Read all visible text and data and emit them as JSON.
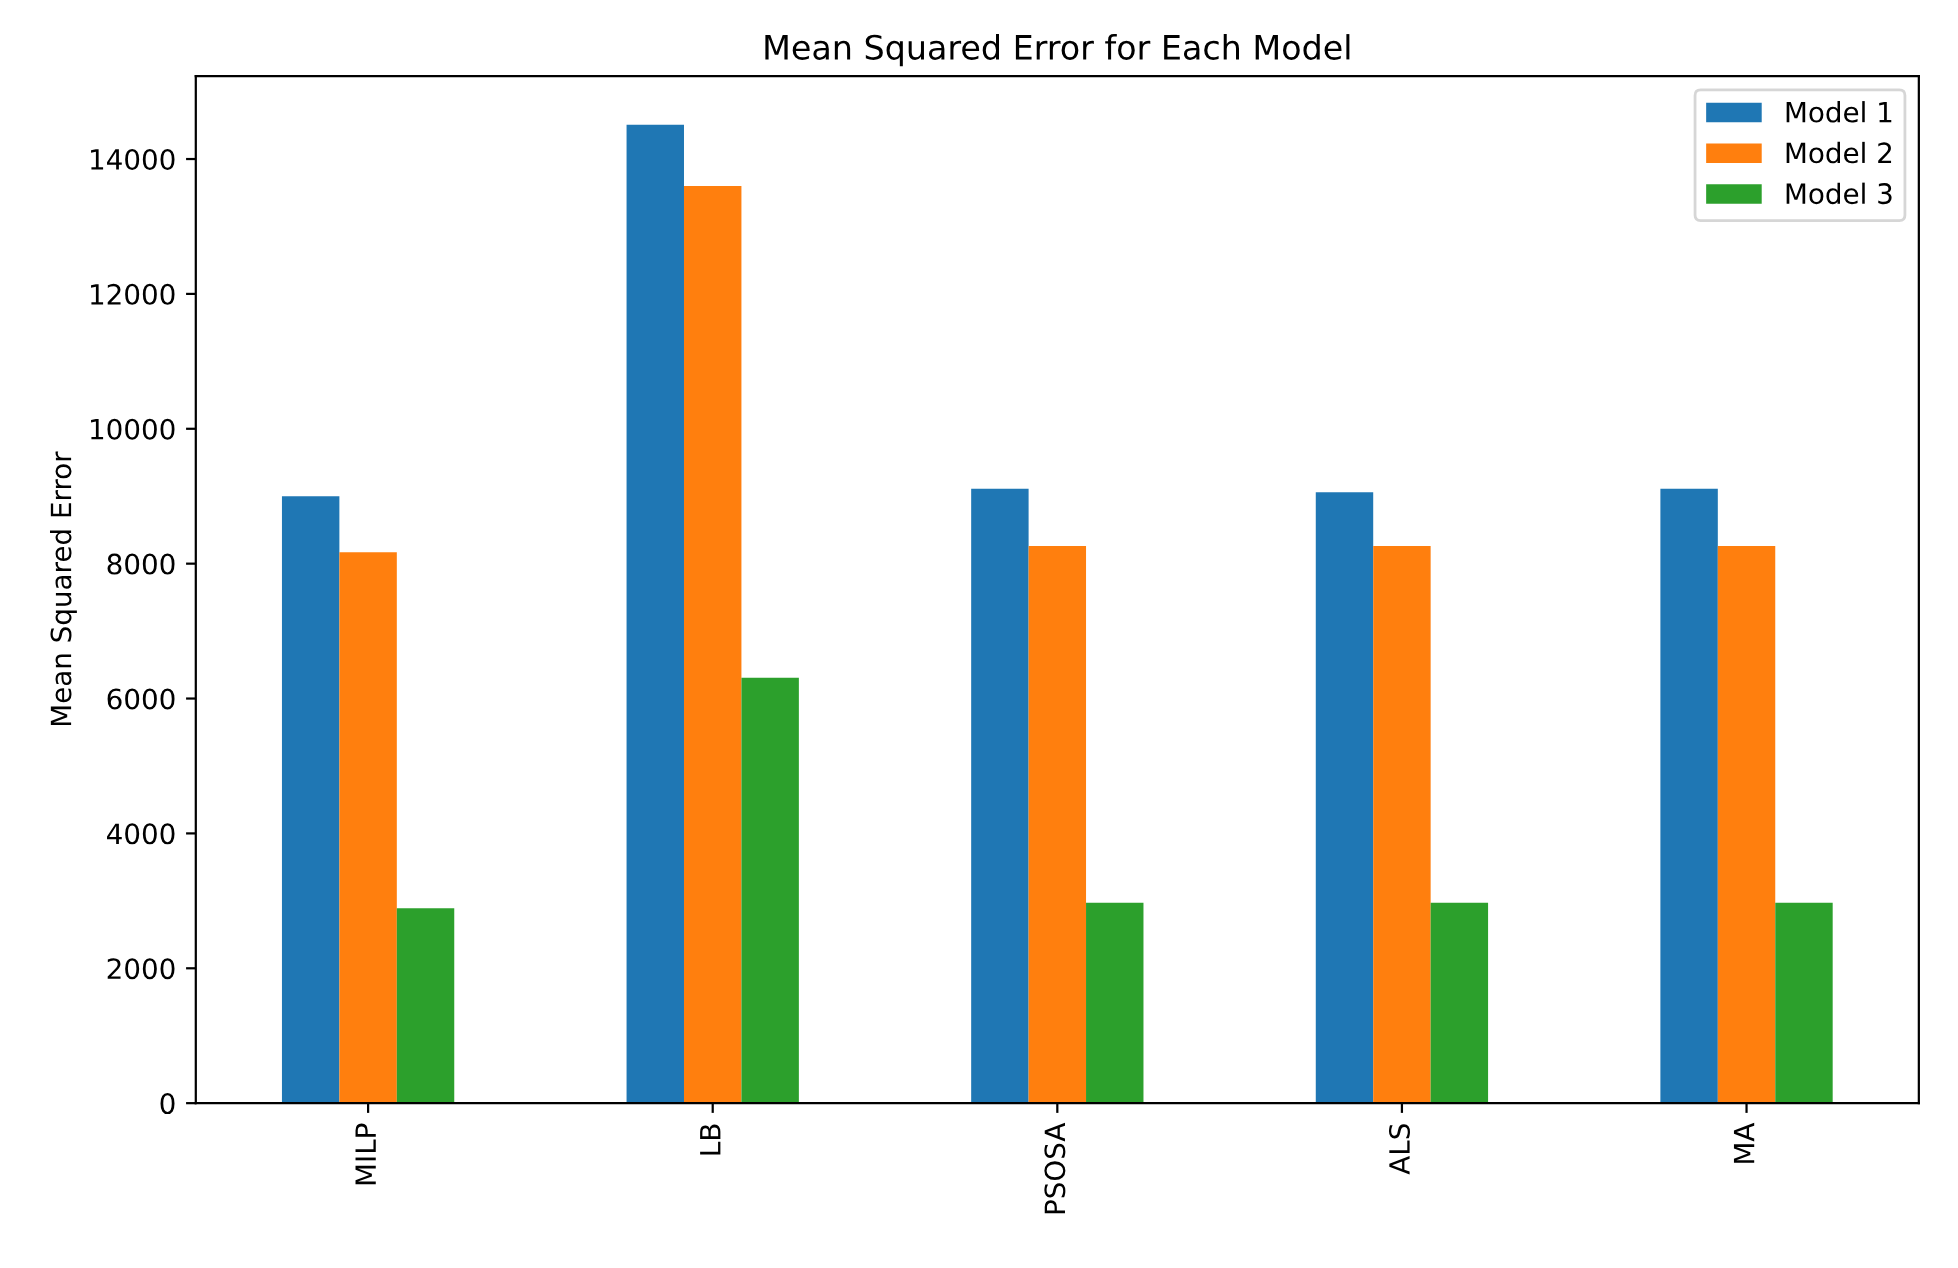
{
  "chart_data": {
    "type": "bar",
    "title": "Mean Squared Error for Each Model",
    "ylabel": "Mean Squared Error",
    "categories": [
      "MILP",
      "LB",
      "PSOSA",
      "ALS",
      "MA"
    ],
    "series": [
      {
        "name": "Model 1",
        "color": "#1f77b4",
        "values": [
          9000,
          14510,
          9110,
          9060,
          9110
        ]
      },
      {
        "name": "Model 2",
        "color": "#ff7f0e",
        "values": [
          8170,
          13600,
          8260,
          8260,
          8260
        ]
      },
      {
        "name": "Model 3",
        "color": "#2ca02c",
        "values": [
          2890,
          6310,
          2970,
          2970,
          2970
        ]
      }
    ],
    "ylim": [
      0,
      15230
    ],
    "yticks": [
      0,
      2000,
      4000,
      6000,
      8000,
      10000,
      12000,
      14000
    ],
    "legend": "top right",
    "grid": false
  }
}
